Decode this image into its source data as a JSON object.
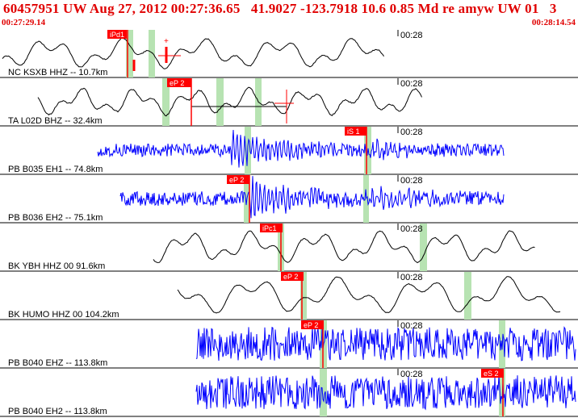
{
  "header": {
    "title": "60457951 UW Aug 27, 2012 00:27:36.65   41.9027 -123.7918 10.6 0.85 Md re amyw UW 01   3",
    "start_time": "00:27:29.14",
    "end_time": "00:28:14.54"
  },
  "colors": {
    "header_text": "#e00000",
    "trace_broadband": "#000000",
    "trace_short_period": "#0000ff",
    "pick_marker": "#ff0000",
    "window_band": "#b7e3b2"
  },
  "traces": [
    {
      "label": "NC KSXB HHZ -- 10.7km",
      "time_tick": "00:28",
      "kind": "broadband",
      "picks": [
        {
          "text": "iPd1"
        }
      ],
      "cursor_mark": "+"
    },
    {
      "label": "TA L02D BHZ -- 32.4km",
      "time_tick": "00:28",
      "kind": "broadband",
      "picks": [
        {
          "text": "eP 2"
        }
      ]
    },
    {
      "label": "PB B035 EH1 -- 74.8km",
      "time_tick": "00:28",
      "kind": "short_period",
      "picks": [
        {
          "text": "iS 1"
        }
      ]
    },
    {
      "label": "PB B036 EH2 -- 75.1km",
      "time_tick": "00:28",
      "kind": "short_period",
      "picks": [
        {
          "text": "eP 2"
        }
      ]
    },
    {
      "label": "BK YBH HHZ 00 91.6km",
      "time_tick": "00:28",
      "kind": "broadband",
      "picks": [
        {
          "text": "iPc1"
        }
      ]
    },
    {
      "label": "BK HUMO HHZ 00 104.2km",
      "time_tick": "00:28",
      "kind": "broadband",
      "picks": [
        {
          "text": "eP 2"
        }
      ]
    },
    {
      "label": "PB B040 EHZ -- 113.8km",
      "time_tick": "00:28",
      "kind": "short_period",
      "picks": [
        {
          "text": "eP 2"
        }
      ]
    },
    {
      "label": "PB B040 EH2 -- 113.8km",
      "time_tick": "00:28",
      "kind": "short_period",
      "picks": [
        {
          "text": "eS 2"
        }
      ]
    }
  ]
}
